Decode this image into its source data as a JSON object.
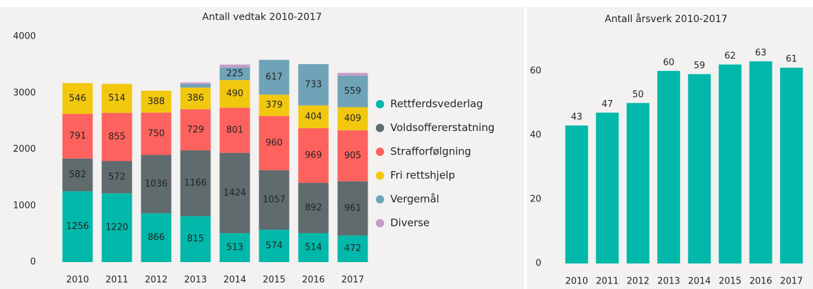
{
  "chart_data": [
    {
      "type": "stacked_bar",
      "title": "Antall vedtak 2010-2017",
      "categories": [
        "2010",
        "2011",
        "2012",
        "2013",
        "2014",
        "2015",
        "2016",
        "2017"
      ],
      "series": [
        {
          "name": "Rettferdsvederlag",
          "color": "#01b8aa",
          "values": [
            1256,
            1220,
            866,
            815,
            513,
            574,
            514,
            472
          ]
        },
        {
          "name": "Voldsoffererstatning",
          "color": "#5f6b6d",
          "values": [
            582,
            572,
            1036,
            1166,
            1424,
            1057,
            892,
            961
          ]
        },
        {
          "name": "Strafforfølgning",
          "color": "#fd625e",
          "values": [
            791,
            855,
            750,
            729,
            801,
            960,
            969,
            905
          ]
        },
        {
          "name": "Fri rettshjelp",
          "color": "#f2c80f",
          "values": [
            546,
            514,
            388,
            386,
            490,
            379,
            404,
            409
          ]
        },
        {
          "name": "Vergemål",
          "color": "#6fa3b8",
          "values": [
            0,
            0,
            0,
            60,
            225,
            617,
            733,
            559
          ]
        },
        {
          "name": "Diverse",
          "color": "#c79cc8",
          "values": [
            0,
            0,
            0,
            30,
            50,
            0,
            0,
            50
          ]
        }
      ],
      "ylim": [
        0,
        4000
      ],
      "yticks": [
        0,
        1000,
        2000,
        3000,
        4000
      ]
    },
    {
      "type": "bar",
      "title": "Antall årsverk 2010-2017",
      "categories": [
        "2010",
        "2011",
        "2012",
        "2013",
        "2014",
        "2015",
        "2016",
        "2017"
      ],
      "values": [
        43,
        47,
        50,
        60,
        59,
        62,
        63,
        61
      ],
      "color": "#01b8aa",
      "ylim": [
        0,
        73.5
      ],
      "yticks": [
        0,
        20,
        40,
        60
      ]
    }
  ]
}
